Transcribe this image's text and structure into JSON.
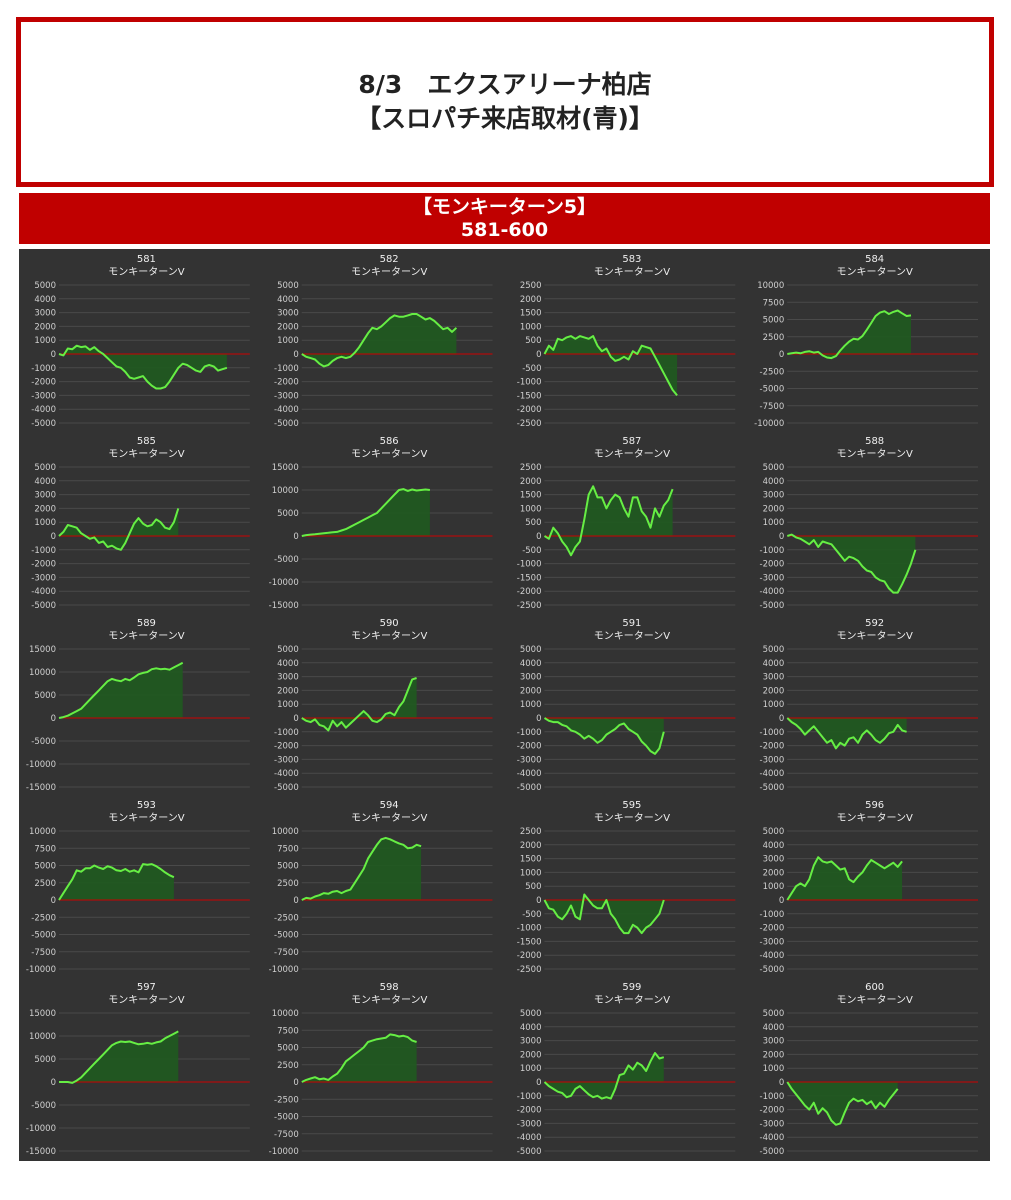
{
  "header": {
    "title_line1": "8/3　エクスアリーナ柏店",
    "title_line2": "【スロパチ来店取材(青)】"
  },
  "section": {
    "machine": "【モンキーターン5】",
    "range": "581-600"
  },
  "colors": {
    "accent_red": "#c00000",
    "panel_bg": "#333333",
    "line_green": "#66ee44",
    "fill_green": "#1f5a1f",
    "zero_line": "#cc0000"
  },
  "chart_data": [
    {
      "type": "area",
      "title": "581",
      "subtitle": "モンキーターンV",
      "yticks": [
        5000,
        4000,
        3000,
        2000,
        1000,
        0,
        -1000,
        -2000,
        -3000,
        -4000,
        -5000
      ],
      "ylim": [
        -5000,
        5000
      ],
      "y": [
        0,
        -100,
        400,
        350,
        600,
        500,
        550,
        300,
        500,
        200,
        0,
        -300,
        -600,
        -900,
        -1000,
        -1300,
        -1700,
        -1800,
        -1700,
        -1600,
        -2000,
        -2300,
        -2500,
        -2500,
        -2400,
        -2000,
        -1500,
        -1000,
        -700,
        -800,
        -1000,
        -1200,
        -1300,
        -900,
        -800,
        -900,
        -1200,
        -1100,
        -1000
      ]
    },
    {
      "type": "area",
      "title": "582",
      "subtitle": "モンキーターンV",
      "yticks": [
        5000,
        4000,
        3000,
        2000,
        1000,
        0,
        -1000,
        -2000,
        -3000,
        -4000,
        -5000
      ],
      "ylim": [
        -5000,
        5000
      ],
      "y": [
        0,
        -200,
        -300,
        -400,
        -700,
        -900,
        -800,
        -500,
        -300,
        -200,
        -300,
        -200,
        100,
        500,
        1000,
        1500,
        1900,
        1800,
        2000,
        2300,
        2600,
        2800,
        2700,
        2700,
        2800,
        2900,
        2900,
        2700,
        2500,
        2600,
        2400,
        2100,
        1800,
        1900,
        1600,
        1900
      ]
    },
    {
      "type": "area",
      "title": "583",
      "subtitle": "モンキーターンV",
      "yticks": [
        2500,
        2000,
        1500,
        1000,
        500,
        0,
        -500,
        -1000,
        -1500,
        -2000,
        -2500
      ],
      "ylim": [
        -2500,
        2500
      ],
      "y": [
        0,
        300,
        150,
        550,
        500,
        600,
        650,
        550,
        650,
        600,
        550,
        650,
        300,
        100,
        200,
        -100,
        -250,
        -200,
        -100,
        -200,
        100,
        0,
        300,
        250,
        200,
        -100,
        -400,
        -700,
        -1000,
        -1300,
        -1500
      ]
    },
    {
      "type": "area",
      "title": "584",
      "subtitle": "モンキーターンV",
      "yticks": [
        10000,
        7500,
        5000,
        2500,
        0,
        -2500,
        -5000,
        -7500,
        -10000
      ],
      "ylim": [
        -10000,
        10000
      ],
      "y": [
        0,
        100,
        200,
        100,
        300,
        400,
        200,
        300,
        -200,
        -500,
        -600,
        -300,
        500,
        1200,
        1800,
        2200,
        2100,
        2600,
        3500,
        4500,
        5500,
        6000,
        6200,
        5800,
        6100,
        6300,
        5900,
        5500,
        5600
      ]
    },
    {
      "type": "area",
      "title": "585",
      "subtitle": "モンキーターンV",
      "yticks": [
        5000,
        4000,
        3000,
        2000,
        1000,
        0,
        -1000,
        -2000,
        -3000,
        -4000,
        -5000
      ],
      "ylim": [
        -5000,
        5000
      ],
      "y": [
        0,
        300,
        800,
        700,
        600,
        200,
        0,
        -200,
        -100,
        -500,
        -400,
        -800,
        -700,
        -900,
        -1000,
        -500,
        200,
        900,
        1300,
        900,
        700,
        800,
        1200,
        1000,
        600,
        500,
        1000,
        2000
      ]
    },
    {
      "type": "area",
      "title": "586",
      "subtitle": "モンキーターンV",
      "yticks": [
        15000,
        10000,
        5000,
        0,
        -5000,
        -10000,
        -15000
      ],
      "ylim": [
        -15000,
        15000
      ],
      "y": [
        0,
        200,
        300,
        400,
        500,
        600,
        700,
        800,
        900,
        1200,
        1500,
        2000,
        2500,
        3000,
        3500,
        4000,
        4500,
        5000,
        6000,
        7000,
        8000,
        9000,
        10000,
        10200,
        9800,
        10100,
        9900,
        10000,
        10100,
        10000
      ]
    },
    {
      "type": "area",
      "title": "587",
      "subtitle": "モンキーターンV",
      "yticks": [
        2500,
        2000,
        1500,
        1000,
        500,
        0,
        -500,
        -1000,
        -1500,
        -2000,
        -2500
      ],
      "ylim": [
        -2500,
        2500
      ],
      "y": [
        0,
        -100,
        300,
        100,
        -200,
        -400,
        -700,
        -400,
        -200,
        600,
        1500,
        1800,
        1400,
        1400,
        1000,
        1300,
        1500,
        1400,
        1000,
        700,
        1400,
        1400,
        900,
        700,
        300,
        1000,
        700,
        1100,
        1300,
        1700
      ]
    },
    {
      "type": "area",
      "title": "588",
      "subtitle": "モンキーターンV",
      "yticks": [
        5000,
        4000,
        3000,
        2000,
        1000,
        0,
        -1000,
        -2000,
        -3000,
        -4000,
        -5000
      ],
      "ylim": [
        -5000,
        5000
      ],
      "y": [
        0,
        100,
        -100,
        -200,
        -400,
        -600,
        -300,
        -800,
        -400,
        -500,
        -600,
        -1000,
        -1400,
        -1800,
        -1500,
        -1600,
        -1800,
        -2200,
        -2500,
        -2600,
        -3000,
        -3200,
        -3300,
        -3800,
        -4100,
        -4100,
        -3500,
        -2800,
        -2000,
        -1000
      ]
    },
    {
      "type": "area",
      "title": "589",
      "subtitle": "モンキーターンV",
      "yticks": [
        15000,
        10000,
        5000,
        0,
        -5000,
        -10000,
        -15000
      ],
      "ylim": [
        -15000,
        15000
      ],
      "y": [
        0,
        200,
        500,
        1000,
        1500,
        2000,
        3000,
        4000,
        5000,
        6000,
        7000,
        8000,
        8500,
        8200,
        8000,
        8500,
        8200,
        8800,
        9500,
        9800,
        10000,
        10600,
        10800,
        10600,
        10700,
        10500,
        11000,
        11500,
        12000
      ]
    },
    {
      "type": "area",
      "title": "590",
      "subtitle": "モンキーターンV",
      "yticks": [
        5000,
        4000,
        3000,
        2000,
        1000,
        0,
        -1000,
        -2000,
        -3000,
        -4000,
        -5000
      ],
      "ylim": [
        -5000,
        5000
      ],
      "y": [
        0,
        -200,
        -300,
        -100,
        -500,
        -600,
        -900,
        -200,
        -600,
        -300,
        -700,
        -400,
        -100,
        200,
        500,
        200,
        -200,
        -300,
        -100,
        300,
        400,
        200,
        800,
        1200,
        2000,
        2800,
        2900
      ]
    },
    {
      "type": "area",
      "title": "591",
      "subtitle": "モンキーターンV",
      "yticks": [
        5000,
        4000,
        3000,
        2000,
        1000,
        0,
        -1000,
        -2000,
        -3000,
        -4000,
        -5000
      ],
      "ylim": [
        -5000,
        5000
      ],
      "y": [
        0,
        -200,
        -300,
        -300,
        -500,
        -600,
        -900,
        -1000,
        -1200,
        -1500,
        -1300,
        -1500,
        -1800,
        -1600,
        -1200,
        -1000,
        -800,
        -500,
        -400,
        -800,
        -1000,
        -1200,
        -1700,
        -2000,
        -2400,
        -2600,
        -2200,
        -1000
      ]
    },
    {
      "type": "area",
      "title": "592",
      "subtitle": "モンキーターンV",
      "yticks": [
        5000,
        4000,
        3000,
        2000,
        1000,
        0,
        -1000,
        -2000,
        -3000,
        -4000,
        -5000
      ],
      "ylim": [
        -5000,
        5000
      ],
      "y": [
        0,
        -300,
        -500,
        -800,
        -1200,
        -900,
        -600,
        -1000,
        -1400,
        -1800,
        -1600,
        -2200,
        -1800,
        -2000,
        -1500,
        -1400,
        -1800,
        -1200,
        -900,
        -1200,
        -1600,
        -1800,
        -1500,
        -1100,
        -1000,
        -500,
        -900,
        -1000
      ]
    },
    {
      "type": "area",
      "title": "593",
      "subtitle": "モンキーターンV",
      "yticks": [
        10000,
        7500,
        5000,
        2500,
        0,
        -2500,
        -5000,
        -7500,
        -10000
      ],
      "ylim": [
        -10000,
        10000
      ],
      "y": [
        0,
        1000,
        2000,
        3000,
        4300,
        4100,
        4600,
        4600,
        5000,
        4700,
        4500,
        4900,
        4700,
        4300,
        4200,
        4500,
        4100,
        4300,
        4000,
        5200,
        5100,
        5200,
        4900,
        4500,
        4000,
        3600,
        3300
      ]
    },
    {
      "type": "area",
      "title": "594",
      "subtitle": "モンキーターンV",
      "yticks": [
        10000,
        7500,
        5000,
        2500,
        0,
        -2500,
        -5000,
        -7500,
        -10000
      ],
      "ylim": [
        -10000,
        10000
      ],
      "y": [
        0,
        300,
        200,
        500,
        700,
        1000,
        900,
        1200,
        1300,
        1000,
        1300,
        1500,
        2500,
        3500,
        4500,
        6000,
        7000,
        8000,
        8800,
        9000,
        8800,
        8500,
        8200,
        8000,
        7500,
        7600,
        8000,
        7800
      ]
    },
    {
      "type": "area",
      "title": "595",
      "subtitle": "モンキーターンV",
      "yticks": [
        2500,
        2000,
        1500,
        1000,
        500,
        0,
        -500,
        -1000,
        -1500,
        -2000,
        -2500
      ],
      "ylim": [
        -2500,
        2500
      ],
      "y": [
        0,
        -300,
        -350,
        -600,
        -700,
        -500,
        -200,
        -600,
        -700,
        200,
        0,
        -200,
        -300,
        -300,
        0,
        -500,
        -700,
        -1000,
        -1200,
        -1200,
        -900,
        -1000,
        -1200,
        -1000,
        -900,
        -700,
        -500,
        0
      ]
    },
    {
      "type": "area",
      "title": "596",
      "subtitle": "モンキーターンV",
      "yticks": [
        5000,
        4000,
        3000,
        2000,
        1000,
        0,
        -1000,
        -2000,
        -3000,
        -4000,
        -5000
      ],
      "ylim": [
        -5000,
        5000
      ],
      "y": [
        0,
        500,
        1000,
        1200,
        1000,
        1500,
        2500,
        3100,
        2800,
        2700,
        2800,
        2500,
        2200,
        2300,
        1500,
        1300,
        1700,
        2000,
        2500,
        2900,
        2700,
        2500,
        2300,
        2500,
        2700,
        2400,
        2800
      ]
    },
    {
      "type": "area",
      "title": "597",
      "subtitle": "モンキーターンV",
      "yticks": [
        15000,
        10000,
        5000,
        0,
        -5000,
        -10000,
        -15000
      ],
      "ylim": [
        -15000,
        15000
      ],
      "y": [
        0,
        0,
        0,
        -200,
        300,
        1000,
        2000,
        3000,
        4000,
        5000,
        6000,
        7000,
        8000,
        8500,
        8800,
        8700,
        8800,
        8500,
        8200,
        8300,
        8500,
        8300,
        8600,
        8800,
        9500,
        10000,
        10500,
        11000
      ]
    },
    {
      "type": "area",
      "title": "598",
      "subtitle": "モンキーターンV",
      "yticks": [
        10000,
        7500,
        5000,
        2500,
        0,
        -2500,
        -5000,
        -7500,
        -10000
      ],
      "ylim": [
        -10000,
        10000
      ],
      "y": [
        0,
        300,
        500,
        700,
        400,
        500,
        300,
        800,
        1200,
        2000,
        3000,
        3500,
        4000,
        4500,
        5000,
        5800,
        6000,
        6200,
        6300,
        6400,
        6900,
        6800,
        6600,
        6700,
        6500,
        6000,
        5800
      ]
    },
    {
      "type": "area",
      "title": "599",
      "subtitle": "モンキーターンV",
      "yticks": [
        5000,
        4000,
        3000,
        2000,
        1000,
        0,
        -1000,
        -2000,
        -3000,
        -4000,
        -5000
      ],
      "ylim": [
        -5000,
        5000
      ],
      "y": [
        0,
        -300,
        -500,
        -700,
        -800,
        -1100,
        -1000,
        -500,
        -300,
        -600,
        -900,
        -1100,
        -1000,
        -1200,
        -1100,
        -1200,
        -500,
        500,
        600,
        1200,
        900,
        1400,
        1200,
        800,
        1500,
        2100,
        1700,
        1800
      ]
    },
    {
      "type": "area",
      "title": "600",
      "subtitle": "モンキーターンV",
      "yticks": [
        5000,
        4000,
        3000,
        2000,
        1000,
        0,
        -1000,
        -2000,
        -3000,
        -4000,
        -5000
      ],
      "ylim": [
        -5000,
        5000
      ],
      "y": [
        0,
        -500,
        -900,
        -1300,
        -1700,
        -2000,
        -1500,
        -2300,
        -1900,
        -2200,
        -2800,
        -3100,
        -3000,
        -2200,
        -1500,
        -1200,
        -1400,
        -1300,
        -1600,
        -1400,
        -1900,
        -1500,
        -1800,
        -1300,
        -900,
        -500
      ]
    }
  ]
}
